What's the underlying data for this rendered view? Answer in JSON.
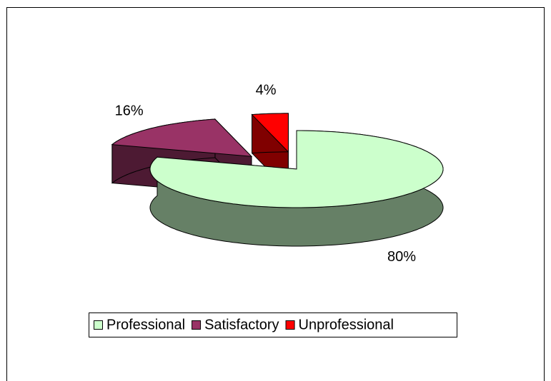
{
  "chart_data": {
    "type": "pie3d",
    "categories": [
      "Professional",
      "Satisfactory",
      "Unprofessional"
    ],
    "values": [
      80,
      16,
      4
    ],
    "value_labels": [
      "80%",
      "16%",
      "4%"
    ],
    "colors": [
      "#ccffcc",
      "#993366",
      "#ff0000"
    ],
    "exploded": [
      false,
      true,
      true
    ],
    "legend": "bottom"
  }
}
